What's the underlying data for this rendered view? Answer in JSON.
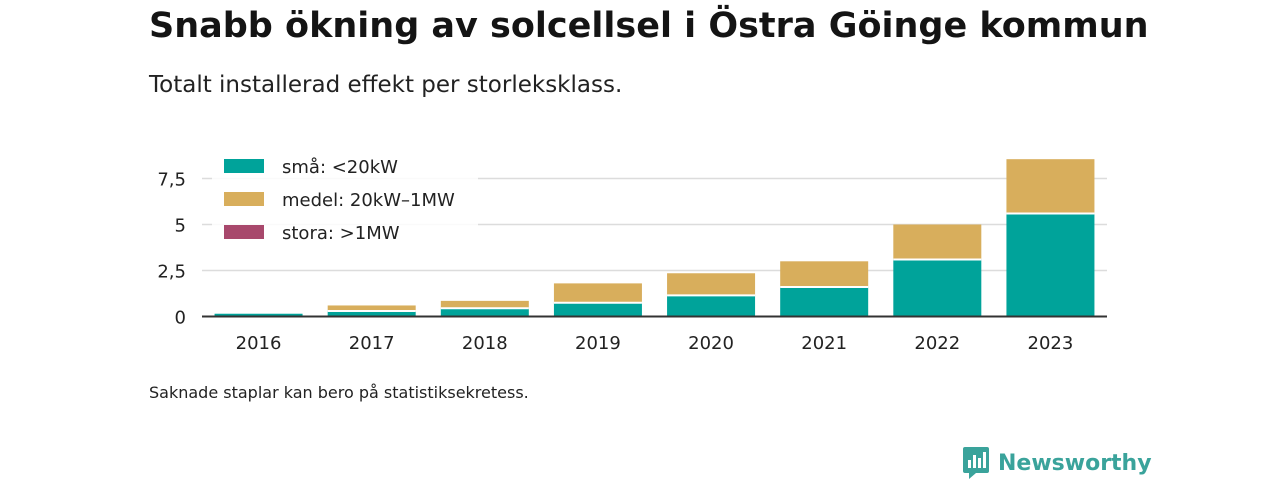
{
  "header": {
    "title": "Snabb ökning av solcellsel i Östra Göinge kommun",
    "subtitle": "Totalt installerad effekt per storleksklass."
  },
  "footnote": "Saknade staplar kan bero på statistiksekretess.",
  "brand": {
    "name": "Newsworthy",
    "icon": "newsworthy-logo-icon",
    "color": "#3aa39b"
  },
  "chart_data": {
    "type": "bar",
    "stacked": true,
    "categories": [
      "2016",
      "2017",
      "2018",
      "2019",
      "2020",
      "2021",
      "2022",
      "2023"
    ],
    "series": [
      {
        "name": "små: <20kW",
        "color": "#00a39a",
        "values": [
          0.15,
          0.3,
          0.45,
          0.75,
          1.15,
          1.6,
          3.1,
          5.6
        ]
      },
      {
        "name": "medel: 20kW–1MW",
        "color": "#d8ae5c",
        "values": [
          0.0,
          0.3,
          0.4,
          1.05,
          1.2,
          1.4,
          1.9,
          2.95
        ]
      },
      {
        "name": "stora: >1MW",
        "color": "#a8486c",
        "values": [
          0,
          0,
          0,
          0,
          0,
          0,
          0,
          0
        ]
      }
    ],
    "yticks": [
      0,
      2.5,
      5,
      7.5
    ],
    "ytick_labels": [
      "0",
      "2,5",
      "5",
      "7,5"
    ],
    "ylim": [
      0,
      8.5
    ],
    "grid": true,
    "legend_position": "top-left"
  }
}
